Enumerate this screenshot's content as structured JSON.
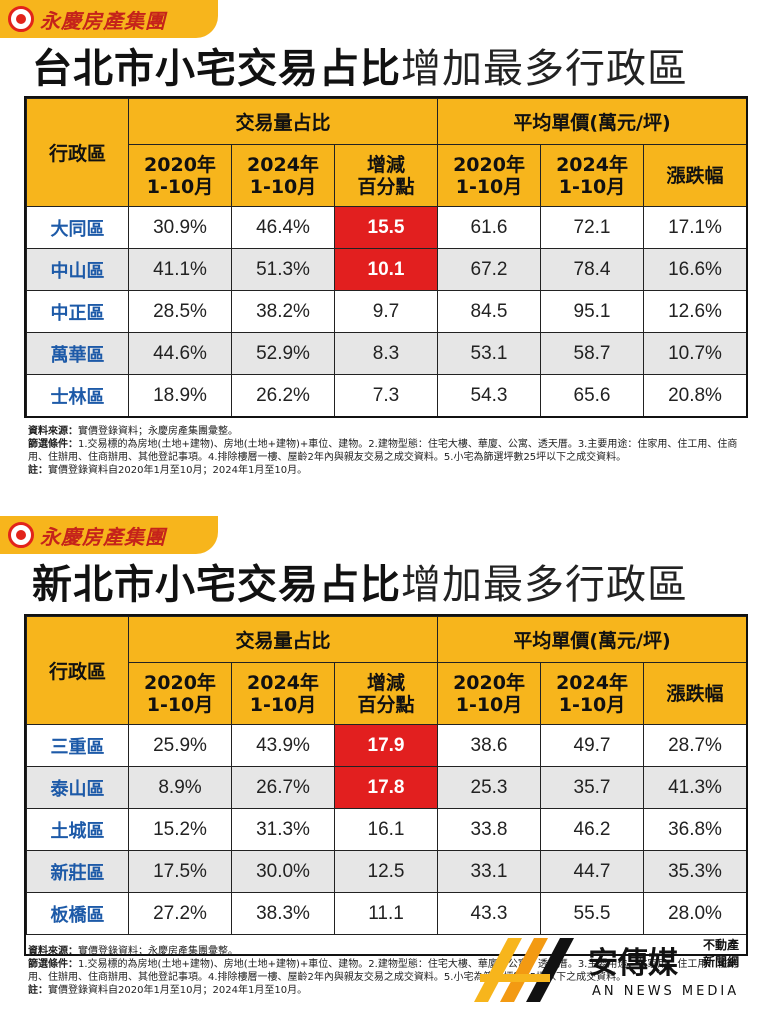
{
  "brand": {
    "name": "永慶房產集團"
  },
  "watermark": {
    "name": "安傳媒",
    "sub1": "不動產",
    "sub2": "新聞網",
    "tagline": "AN NEWS MEDIA"
  },
  "chart_data": [
    {
      "type": "table",
      "title_bold": "台北市小宅交易占比",
      "title_light": "增加最多行政區",
      "header": {
        "district": "行政區",
        "group1": "交易量占比",
        "group2": "平均單價(萬元/坪)",
        "sub": [
          "2020年\n1-10月",
          "2024年\n1-10月",
          "增減\n百分點",
          "2020年\n1-10月",
          "2024年\n1-10月",
          "漲跌幅"
        ]
      },
      "rows": [
        {
          "district": "大同區",
          "share2020": "30.9%",
          "share2024": "46.4%",
          "change": "15.5",
          "price2020": "61.6",
          "price2024": "72.1",
          "growth": "17.1%",
          "highlight": true
        },
        {
          "district": "中山區",
          "share2020": "41.1%",
          "share2024": "51.3%",
          "change": "10.1",
          "price2020": "67.2",
          "price2024": "78.4",
          "growth": "16.6%",
          "highlight": true
        },
        {
          "district": "中正區",
          "share2020": "28.5%",
          "share2024": "38.2%",
          "change": "9.7",
          "price2020": "84.5",
          "price2024": "95.1",
          "growth": "12.6%",
          "highlight": false
        },
        {
          "district": "萬華區",
          "share2020": "44.6%",
          "share2024": "52.9%",
          "change": "8.3",
          "price2020": "53.1",
          "price2024": "58.7",
          "growth": "10.7%",
          "highlight": false
        },
        {
          "district": "士林區",
          "share2020": "18.9%",
          "share2024": "26.2%",
          "change": "7.3",
          "price2020": "54.3",
          "price2024": "65.6",
          "growth": "20.8%",
          "highlight": false
        }
      ],
      "notes": {
        "source_label": "資料來源：",
        "source": "實價登錄資料；永慶房產集團彙整。",
        "criteria_label": "篩選條件：",
        "criteria": "1.交易標的為房地(土地+建物)、房地(土地+建物)+車位、建物。2.建物型態：住宅大樓、華廈、公寓、透天厝。3.主要用途：住家用、住工用、住商用、住辦用、住商辦用、其他登記事項。4.排除樓層一樓、屋齡2年內與親友交易之成交資料。5.小宅為篩選坪數25坪以下之成交資料。",
        "remark_label": "註：",
        "remark": "實價登錄資料自2020年1月至10月；2024年1月至10月。"
      }
    },
    {
      "type": "table",
      "title_bold": "新北市小宅交易占比",
      "title_light": "增加最多行政區",
      "header": {
        "district": "行政區",
        "group1": "交易量占比",
        "group2": "平均單價(萬元/坪)",
        "sub": [
          "2020年\n1-10月",
          "2024年\n1-10月",
          "增減\n百分點",
          "2020年\n1-10月",
          "2024年\n1-10月",
          "漲跌幅"
        ]
      },
      "rows": [
        {
          "district": "三重區",
          "share2020": "25.9%",
          "share2024": "43.9%",
          "change": "17.9",
          "price2020": "38.6",
          "price2024": "49.7",
          "growth": "28.7%",
          "highlight": true
        },
        {
          "district": "泰山區",
          "share2020": "8.9%",
          "share2024": "26.7%",
          "change": "17.8",
          "price2020": "25.3",
          "price2024": "35.7",
          "growth": "41.3%",
          "highlight": true
        },
        {
          "district": "土城區",
          "share2020": "15.2%",
          "share2024": "31.3%",
          "change": "16.1",
          "price2020": "33.8",
          "price2024": "46.2",
          "growth": "36.8%",
          "highlight": false
        },
        {
          "district": "新莊區",
          "share2020": "17.5%",
          "share2024": "30.0%",
          "change": "12.5",
          "price2020": "33.1",
          "price2024": "44.7",
          "growth": "35.3%",
          "highlight": false
        },
        {
          "district": "板橋區",
          "share2020": "27.2%",
          "share2024": "38.3%",
          "change": "11.1",
          "price2020": "43.3",
          "price2024": "55.5",
          "growth": "28.0%",
          "highlight": false
        }
      ],
      "notes": {
        "source_label": "資料來源：",
        "source": "實價登錄資料；永慶房產集團彙整。",
        "criteria_label": "篩選條件：",
        "criteria": "1.交易標的為房地(土地+建物)、房地(土地+建物)+車位、建物。2.建物型態：住宅大樓、華廈、公寓、透天厝。3.主要用途：住家用、住工用、住商用、住辦用、住商辦用、其他登記事項。4.排除樓層一樓、屋齡2年內與親友交易之成交資料。5.小宅為篩選坪數25坪以下之成交資料。",
        "remark_label": "註：",
        "remark": "實價登錄資料自2020年1月至10月；2024年1月至10月。"
      }
    }
  ]
}
